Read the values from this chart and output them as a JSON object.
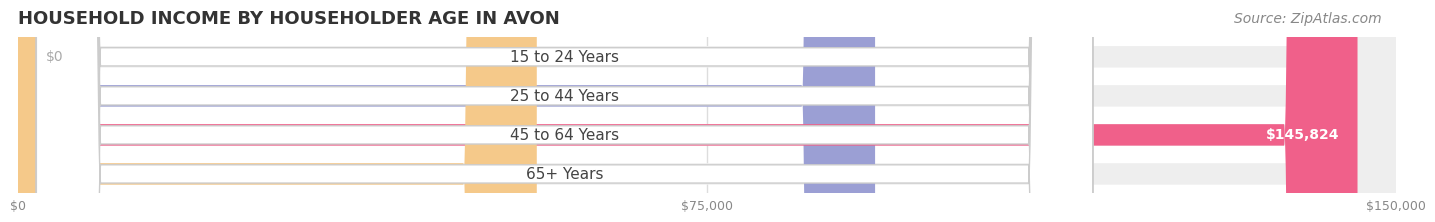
{
  "title": "HOUSEHOLD INCOME BY HOUSEHOLDER AGE IN AVON",
  "source": "Source: ZipAtlas.com",
  "categories": [
    "15 to 24 Years",
    "25 to 44 Years",
    "45 to 64 Years",
    "65+ Years"
  ],
  "values": [
    0,
    93305,
    145824,
    56477
  ],
  "bar_colors": [
    "#6ecfce",
    "#9b9fd4",
    "#f0608a",
    "#f5c98a"
  ],
  "bar_bg_color": "#eeeeee",
  "background_color": "#ffffff",
  "xlim": [
    0,
    150000
  ],
  "xticks": [
    0,
    75000,
    150000
  ],
  "xtick_labels": [
    "$0",
    "$75,000",
    "$150,000"
  ],
  "title_fontsize": 13,
  "source_fontsize": 10,
  "label_fontsize": 11,
  "value_fontsize": 10,
  "bar_height": 0.55,
  "label_box_color": "#ffffff",
  "label_text_color": "#444444",
  "value_label_color_inside": "#ffffff",
  "value_label_color_outside": "#888888",
  "grid_color": "#dddddd",
  "axis_label_color": "#888888"
}
